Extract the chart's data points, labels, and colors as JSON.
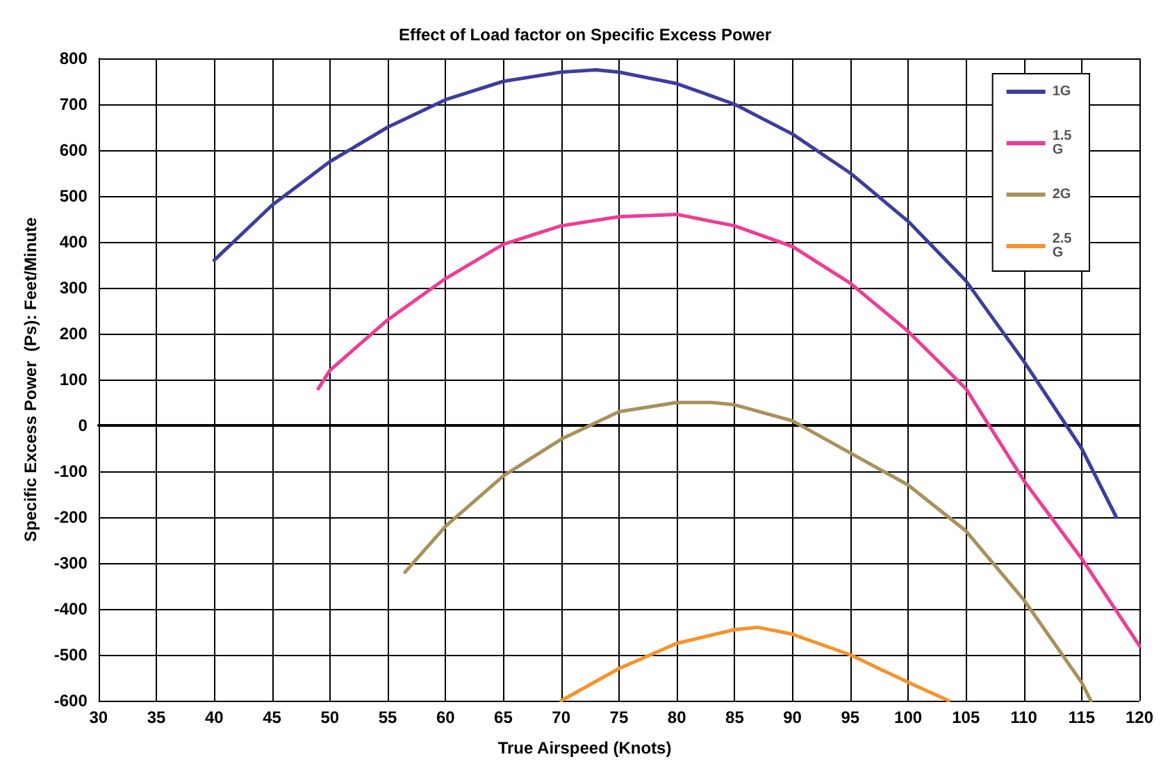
{
  "chart_data": {
    "type": "line",
    "title": "Effect of Load factor on Specific Excess Power",
    "xlabel": "True Airspeed (Knots)",
    "ylabel": "Specific Excess Power  (Ps): Feet/Minute",
    "series": [
      {
        "name": "1G",
        "color": "#3d3d9e",
        "x": [
          40,
          45,
          50,
          55,
          60,
          65,
          70,
          73,
          75,
          80,
          85,
          90,
          95,
          100,
          105,
          110,
          115,
          118
        ],
        "values": [
          360,
          480,
          575,
          650,
          710,
          750,
          770,
          775,
          770,
          745,
          700,
          635,
          550,
          445,
          315,
          140,
          -50,
          -200
        ]
      },
      {
        "name": "1.5 G",
        "color": "#ee3c96",
        "x": [
          49,
          50,
          55,
          60,
          65,
          70,
          75,
          80,
          85,
          90,
          95,
          100,
          105,
          107,
          110,
          115,
          120
        ],
        "values": [
          80,
          120,
          230,
          320,
          395,
          435,
          455,
          460,
          435,
          390,
          310,
          205,
          80,
          0,
          -120,
          -290,
          -480
        ]
      },
      {
        "name": "2G",
        "color": "#a8915a",
        "x": [
          56.5,
          60,
          65,
          70,
          75,
          80,
          83,
          85,
          90,
          95,
          100,
          105,
          110,
          115,
          115.8
        ],
        "values": [
          -320,
          -220,
          -110,
          -30,
          30,
          50,
          50,
          45,
          10,
          -60,
          -130,
          -230,
          -380,
          -560,
          -600
        ]
      },
      {
        "name": "2.5 G",
        "color": "#f7922a",
        "x": [
          70,
          75,
          80,
          85,
          87,
          90,
          95,
          100,
          103.5
        ],
        "values": [
          -600,
          -530,
          -475,
          -445,
          -440,
          -455,
          -500,
          -560,
          -600
        ]
      }
    ],
    "xlim": [
      30,
      120
    ],
    "xticks": [
      30,
      35,
      40,
      45,
      50,
      55,
      60,
      65,
      70,
      75,
      80,
      85,
      90,
      95,
      100,
      105,
      110,
      115,
      120
    ],
    "ylim": [
      -600,
      800
    ],
    "yticks": [
      -600,
      -500,
      -400,
      -300,
      -200,
      -100,
      0,
      100,
      200,
      300,
      400,
      500,
      600,
      700,
      800
    ],
    "grid": true,
    "legend": "top right",
    "marker": "none",
    "line_style": "solid"
  }
}
